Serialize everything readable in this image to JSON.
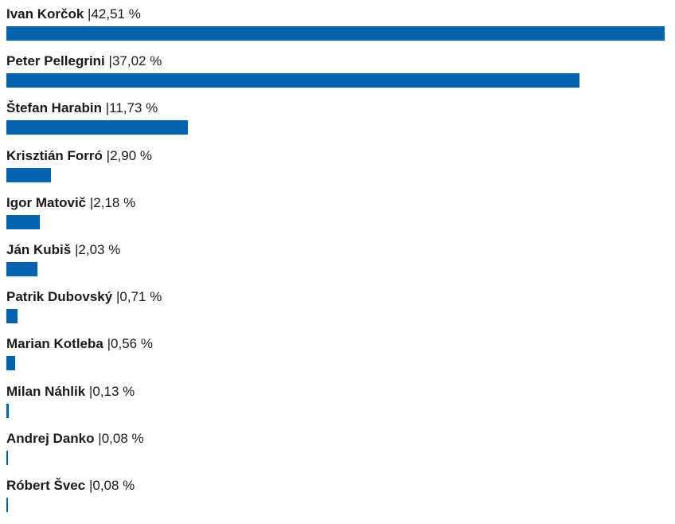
{
  "chart_data": {
    "type": "bar",
    "orientation": "horizontal",
    "categories": [
      "Ivan Korčok",
      "Peter Pellegrini",
      "Štefan Harabin",
      "Krisztián Forró",
      "Igor Matovič",
      "Ján Kubiš",
      "Patrik Dubovský",
      "Marian Kotleba",
      "Milan Náhlik",
      "Andrej Danko",
      "Róbert Švec"
    ],
    "values": [
      42.51,
      37.02,
      11.73,
      2.9,
      2.18,
      2.03,
      0.71,
      0.56,
      0.13,
      0.08,
      0.08
    ],
    "value_labels": [
      "42,51 %",
      "37,02 %",
      "11,73 %",
      "2,90 %",
      "2,18 %",
      "2,03 %",
      "0,71 %",
      "0,56 %",
      "0,13 %",
      "0,08 %",
      "0,08 %"
    ],
    "separator": "|",
    "bar_color": "#0562b0",
    "xlim": [
      0,
      42.51
    ],
    "grid": false,
    "legend": "none"
  }
}
